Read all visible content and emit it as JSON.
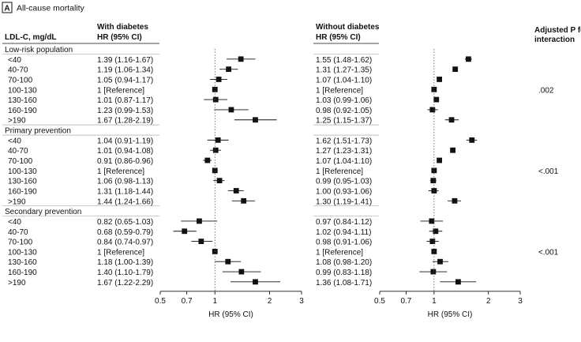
{
  "panel": {
    "letter": "A",
    "title": "All-cause mortality"
  },
  "header": {
    "row_label": "LDL-C, mg/dL",
    "group1_title": "With diabetes",
    "group1_sub": "HR (95% CI)",
    "group2_title": "Without diabetes",
    "group2_sub": "HR (95% CI)",
    "interaction_line1": "Adjusted P for",
    "interaction_line2": "interaction"
  },
  "colors": {
    "marker": "#111111",
    "ci_line": "#111111",
    "reference_line": "#555555",
    "axis": "#111111",
    "background": "#ffffff"
  },
  "chart_data": [
    {
      "type": "forest",
      "name": "With diabetes",
      "xlabel": "HR (95% CI)",
      "scale": "log",
      "xlim": [
        0.5,
        3
      ],
      "ticks": [
        "0.5",
        "0.7",
        "1",
        "2",
        "3"
      ],
      "reference_value": 1,
      "sections": [
        {
          "label": "Low-risk population",
          "rows": [
            {
              "label": "<40",
              "hr": 1.39,
              "lo": 1.16,
              "hi": 1.67,
              "text": "1.39 (1.16-1.67)"
            },
            {
              "label": "40-70",
              "hr": 1.19,
              "lo": 1.06,
              "hi": 1.34,
              "text": "1.19 (1.06-1.34)"
            },
            {
              "label": "70-100",
              "hr": 1.05,
              "lo": 0.94,
              "hi": 1.17,
              "text": "1.05 (0.94-1.17)"
            },
            {
              "label": "100-130",
              "hr": 1,
              "lo": 1,
              "hi": 1,
              "text": "1 [Reference]"
            },
            {
              "label": "130-160",
              "hr": 1.01,
              "lo": 0.87,
              "hi": 1.17,
              "text": "1.01 (0.87-1.17)"
            },
            {
              "label": "160-190",
              "hr": 1.23,
              "lo": 0.99,
              "hi": 1.53,
              "text": "1.23 (0.99-1.53)"
            },
            {
              "label": ">190",
              "hr": 1.67,
              "lo": 1.28,
              "hi": 2.19,
              "text": "1.67 (1.28-2.19)"
            }
          ]
        },
        {
          "label": "Primary prevention",
          "rows": [
            {
              "label": "<40",
              "hr": 1.04,
              "lo": 0.91,
              "hi": 1.19,
              "text": "1.04 (0.91-1.19)"
            },
            {
              "label": "40-70",
              "hr": 1.01,
              "lo": 0.94,
              "hi": 1.08,
              "text": "1.01 (0.94-1.08)"
            },
            {
              "label": "70-100",
              "hr": 0.91,
              "lo": 0.86,
              "hi": 0.96,
              "text": "0.91 (0.86-0.96)"
            },
            {
              "label": "100-130",
              "hr": 1,
              "lo": 1,
              "hi": 1,
              "text": "1 [Reference]"
            },
            {
              "label": "130-160",
              "hr": 1.06,
              "lo": 0.98,
              "hi": 1.13,
              "text": "1.06 (0.98-1.13)"
            },
            {
              "label": "160-190",
              "hr": 1.31,
              "lo": 1.18,
              "hi": 1.44,
              "text": "1.31 (1.18-1.44)"
            },
            {
              "label": ">190",
              "hr": 1.44,
              "lo": 1.24,
              "hi": 1.66,
              "text": "1.44 (1.24-1.66)"
            }
          ]
        },
        {
          "label": "Secondary prevention",
          "rows": [
            {
              "label": "<40",
              "hr": 0.82,
              "lo": 0.65,
              "hi": 1.03,
              "text": "0.82 (0.65-1.03)"
            },
            {
              "label": "40-70",
              "hr": 0.68,
              "lo": 0.59,
              "hi": 0.79,
              "text": "0.68 (0.59-0.79)"
            },
            {
              "label": "70-100",
              "hr": 0.84,
              "lo": 0.74,
              "hi": 0.97,
              "text": "0.84 (0.74-0.97)"
            },
            {
              "label": "100-130",
              "hr": 1,
              "lo": 1,
              "hi": 1,
              "text": "1 [Reference]"
            },
            {
              "label": "130-160",
              "hr": 1.18,
              "lo": 1.0,
              "hi": 1.39,
              "text": "1.18 (1.00-1.39)"
            },
            {
              "label": "160-190",
              "hr": 1.4,
              "lo": 1.1,
              "hi": 1.79,
              "text": "1.40 (1.10-1.79)"
            },
            {
              "label": ">190",
              "hr": 1.67,
              "lo": 1.22,
              "hi": 2.29,
              "text": "1.67 (1.22-2.29)"
            }
          ]
        }
      ]
    },
    {
      "type": "forest",
      "name": "Without diabetes",
      "xlabel": "HR (95% CI)",
      "scale": "log",
      "xlim": [
        0.5,
        3
      ],
      "ticks": [
        "0.5",
        "0.7",
        "1",
        "2",
        "3"
      ],
      "reference_value": 1,
      "sections": [
        {
          "label": "Low-risk population",
          "p_interaction": ".002",
          "rows": [
            {
              "label": "<40",
              "hr": 1.55,
              "lo": 1.48,
              "hi": 1.62,
              "text": "1.55 (1.48-1.62)"
            },
            {
              "label": "40-70",
              "hr": 1.31,
              "lo": 1.27,
              "hi": 1.35,
              "text": "1.31 (1.27-1.35)"
            },
            {
              "label": "70-100",
              "hr": 1.07,
              "lo": 1.04,
              "hi": 1.1,
              "text": "1.07 (1.04-1.10)"
            },
            {
              "label": "100-130",
              "hr": 1,
              "lo": 1,
              "hi": 1,
              "text": "1 [Reference]"
            },
            {
              "label": "130-160",
              "hr": 1.03,
              "lo": 0.99,
              "hi": 1.06,
              "text": "1.03 (0.99-1.06)"
            },
            {
              "label": "160-190",
              "hr": 0.98,
              "lo": 0.92,
              "hi": 1.05,
              "text": "0.98 (0.92-1.05)"
            },
            {
              "label": ">190",
              "hr": 1.25,
              "lo": 1.15,
              "hi": 1.37,
              "text": "1.25 (1.15-1.37)"
            }
          ]
        },
        {
          "label": "Primary prevention",
          "p_interaction": "<.001",
          "rows": [
            {
              "label": "<40",
              "hr": 1.62,
              "lo": 1.51,
              "hi": 1.73,
              "text": "1.62 (1.51-1.73)"
            },
            {
              "label": "40-70",
              "hr": 1.27,
              "lo": 1.23,
              "hi": 1.31,
              "text": "1.27 (1.23-1.31)"
            },
            {
              "label": "70-100",
              "hr": 1.07,
              "lo": 1.04,
              "hi": 1.1,
              "text": "1.07 (1.04-1.10)"
            },
            {
              "label": "100-130",
              "hr": 1,
              "lo": 1,
              "hi": 1,
              "text": "1 [Reference]"
            },
            {
              "label": "130-160",
              "hr": 0.99,
              "lo": 0.95,
              "hi": 1.03,
              "text": "0.99 (0.95-1.03)"
            },
            {
              "label": "160-190",
              "hr": 1.0,
              "lo": 0.93,
              "hi": 1.06,
              "text": "1.00 (0.93-1.06)"
            },
            {
              "label": ">190",
              "hr": 1.3,
              "lo": 1.19,
              "hi": 1.41,
              "text": "1.30 (1.19-1.41)"
            }
          ]
        },
        {
          "label": "Secondary prevention",
          "p_interaction": "<.001",
          "rows": [
            {
              "label": "<40",
              "hr": 0.97,
              "lo": 0.84,
              "hi": 1.12,
              "text": "0.97 (0.84-1.12)"
            },
            {
              "label": "40-70",
              "hr": 1.02,
              "lo": 0.94,
              "hi": 1.11,
              "text": "1.02 (0.94-1.11)"
            },
            {
              "label": "70-100",
              "hr": 0.98,
              "lo": 0.91,
              "hi": 1.06,
              "text": "0.98 (0.91-1.06)"
            },
            {
              "label": "100-130",
              "hr": 1,
              "lo": 1,
              "hi": 1,
              "text": "1 [Reference]"
            },
            {
              "label": "130-160",
              "hr": 1.08,
              "lo": 0.98,
              "hi": 1.2,
              "text": "1.08 (0.98-1.20)"
            },
            {
              "label": "160-190",
              "hr": 0.99,
              "lo": 0.83,
              "hi": 1.18,
              "text": "0.99 (0.83-1.18)"
            },
            {
              "label": ">190",
              "hr": 1.36,
              "lo": 1.08,
              "hi": 1.71,
              "text": "1.36 (1.08-1.71)"
            }
          ]
        }
      ]
    }
  ]
}
